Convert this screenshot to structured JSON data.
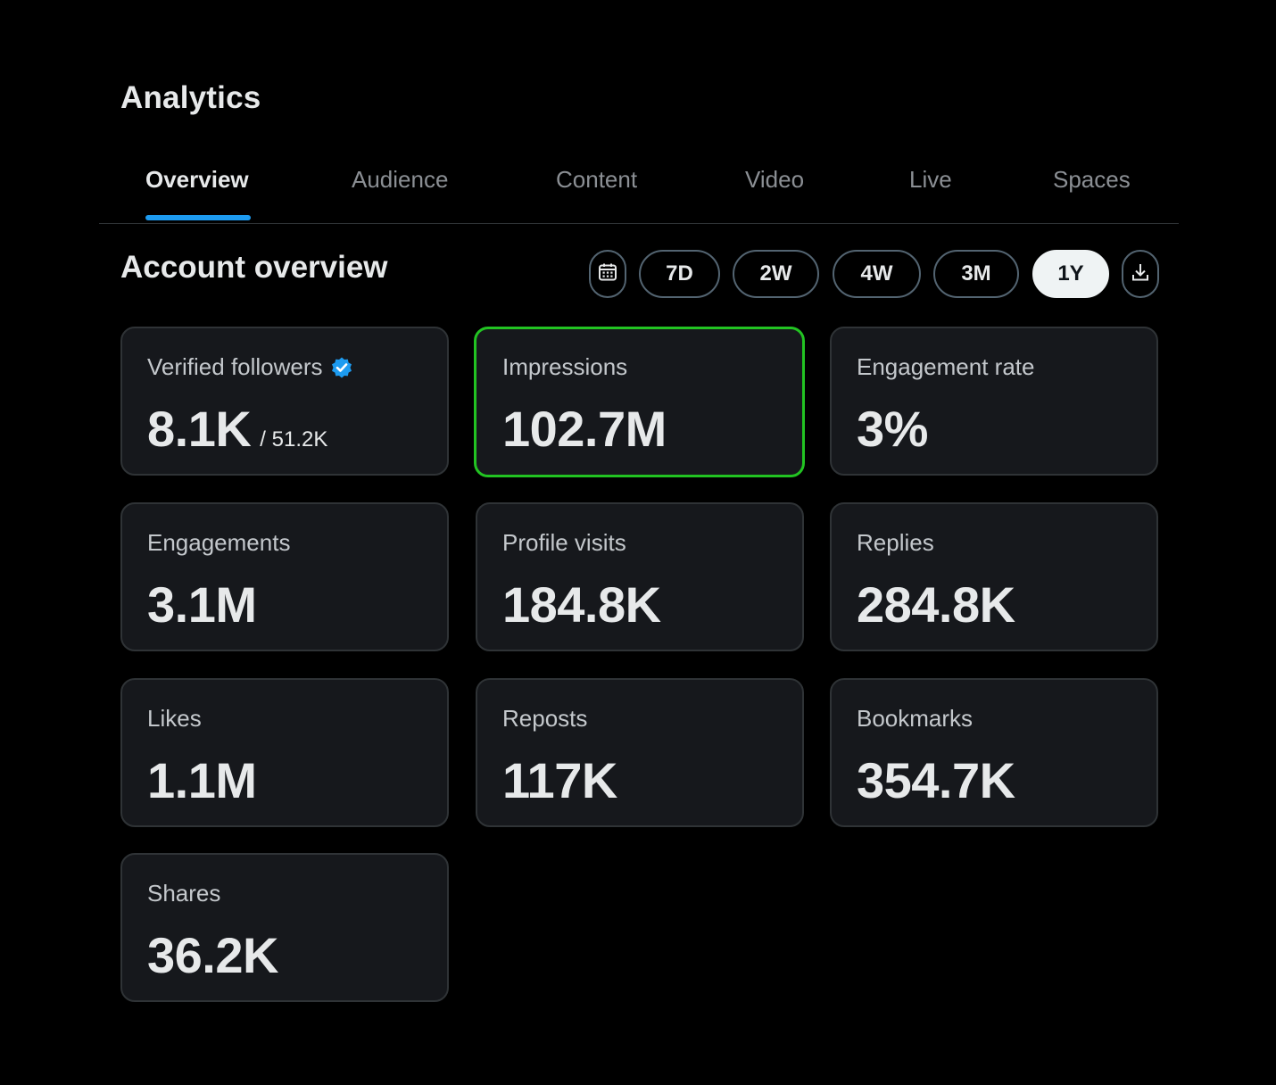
{
  "header": {
    "title": "Analytics"
  },
  "tabs": [
    {
      "label": "Overview",
      "active": true
    },
    {
      "label": "Audience",
      "active": false
    },
    {
      "label": "Content",
      "active": false
    },
    {
      "label": "Video",
      "active": false
    },
    {
      "label": "Live",
      "active": false
    },
    {
      "label": "Spaces",
      "active": false
    }
  ],
  "overview": {
    "title": "Account overview",
    "calendar_icon": "calendar-icon",
    "download_icon": "download-icon",
    "ranges": [
      {
        "label": "7D",
        "selected": false
      },
      {
        "label": "2W",
        "selected": false
      },
      {
        "label": "4W",
        "selected": false
      },
      {
        "label": "3M",
        "selected": false
      },
      {
        "label": "1Y",
        "selected": true
      }
    ]
  },
  "metrics": [
    {
      "label": "Verified followers",
      "value": "8.1K",
      "sub": "/ 51.2K",
      "verified_icon": "verified-badge-icon"
    },
    {
      "label": "Impressions",
      "value": "102.7M",
      "highlighted": true
    },
    {
      "label": "Engagement rate",
      "value": "3%"
    },
    {
      "label": "Engagements",
      "value": "3.1M"
    },
    {
      "label": "Profile visits",
      "value": "184.8K"
    },
    {
      "label": "Replies",
      "value": "284.8K"
    },
    {
      "label": "Likes",
      "value": "1.1M"
    },
    {
      "label": "Reposts",
      "value": "117K"
    },
    {
      "label": "Bookmarks",
      "value": "354.7K"
    },
    {
      "label": "Shares",
      "value": "36.2K"
    }
  ],
  "colors": {
    "background": "#000000",
    "card": "#16181c",
    "accent": "#1d9bf0",
    "highlight": "#22c322",
    "verified": "#1d9bf0"
  }
}
